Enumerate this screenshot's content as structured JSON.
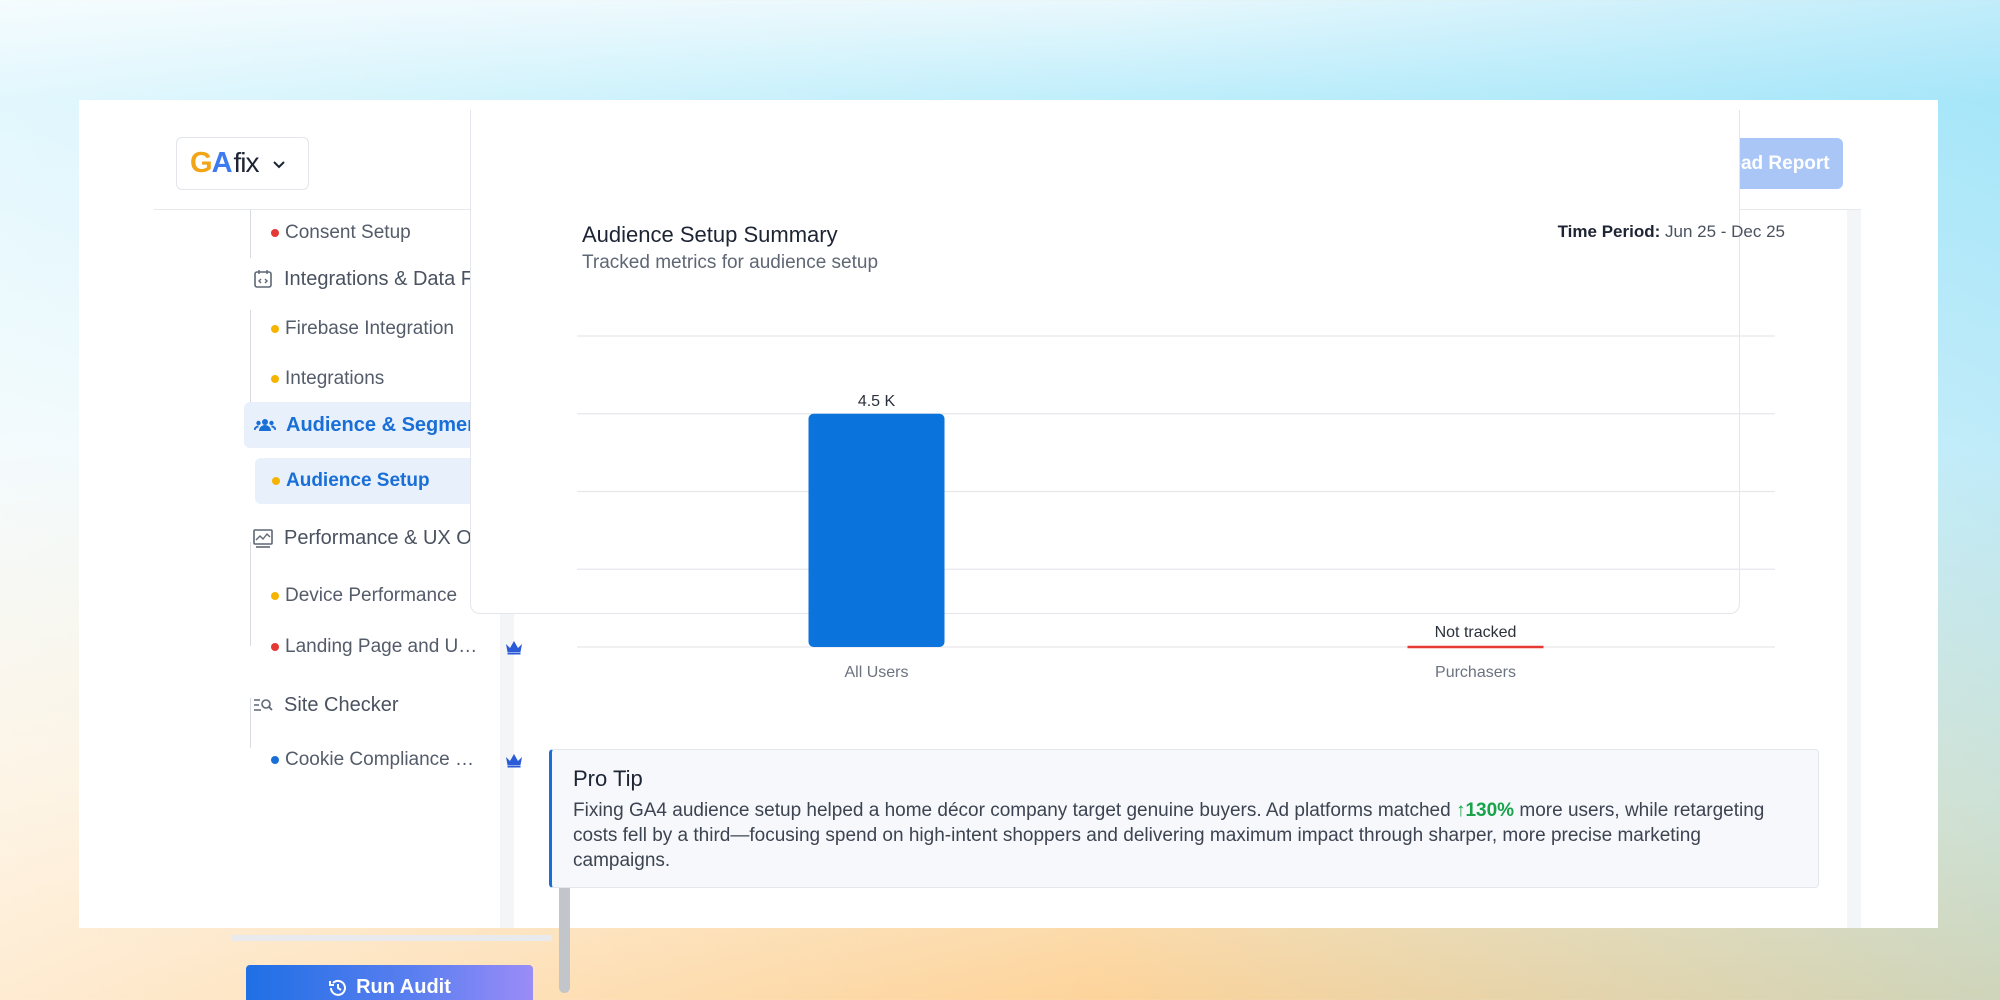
{
  "header": {
    "logo": {
      "g": "G",
      "a": "A",
      "fix": "fix"
    },
    "download_label": "Download Report"
  },
  "sidebar": {
    "items": [
      {
        "type": "sub",
        "label": "Consent Setup",
        "dot_color": "#e53935",
        "premium": true
      },
      {
        "type": "section",
        "label": "Integrations & Data Flow",
        "icon": "integration-icon"
      },
      {
        "type": "sub",
        "label": "Firebase Integration",
        "dot_color": "#f5b400",
        "premium": true
      },
      {
        "type": "sub",
        "label": "Integrations",
        "dot_color": "#f5b400",
        "premium": true
      },
      {
        "type": "section",
        "label": "Audience & Segmentation",
        "icon": "users-icon",
        "active": true
      },
      {
        "type": "sub",
        "label": "Audience Setup",
        "dot_color": "#f5b400",
        "active": true
      },
      {
        "type": "section",
        "label": "Performance & UX Optimization",
        "icon": "performance-chart-icon"
      },
      {
        "type": "sub",
        "label": "Device Performance",
        "dot_color": "#f5b400"
      },
      {
        "type": "sub",
        "label": "Landing Page and User Experience",
        "dot_color": "#e53935",
        "premium": true
      },
      {
        "type": "section",
        "label": "Site Checker",
        "icon": "search-list-icon"
      },
      {
        "type": "sub",
        "label": "Cookie Compliance Checker",
        "dot_color": "#1a6fd6",
        "premium": true
      }
    ],
    "run_label": "Run Audit"
  },
  "summary": {
    "title": "Audience Setup Summary",
    "subtitle": "Tracked metrics for audience setup",
    "time_label": "Time Period:",
    "time_value": "Jun 25 - Dec 25"
  },
  "chart_data": {
    "type": "bar",
    "categories": [
      "All Users",
      "Purchasers"
    ],
    "values": [
      4500,
      null
    ],
    "data_labels": [
      "4.5 K",
      "Not tracked"
    ],
    "ylim": [
      0,
      6000
    ],
    "grid": true,
    "colors": {
      "bar": "#0b73dc",
      "not_tracked": "#e53935"
    }
  },
  "pro_tip": {
    "title": "Pro Tip",
    "body_pre": "Fixing GA4 audience setup helped a home décor company target genuine buyers. Ad platforms matched ",
    "stat": "↑130%",
    "body_post": " more users, while retargeting costs fell by a third—focusing spend on high-intent shoppers and delivering maximum impact through sharper, more precise marketing campaigns."
  }
}
